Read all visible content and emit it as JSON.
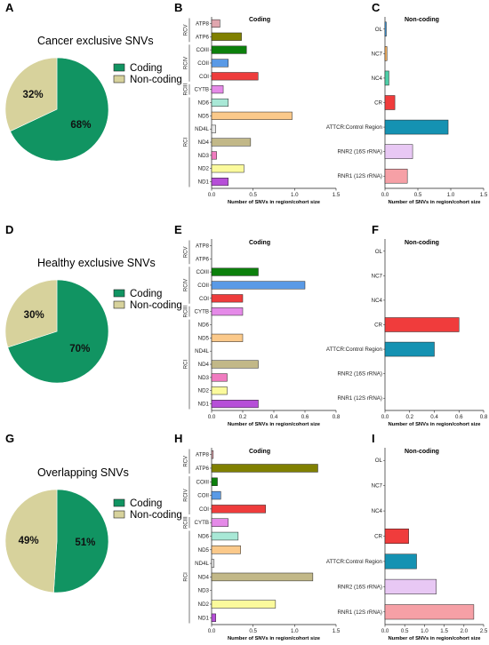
{
  "colors": {
    "coding_slice": "#119462",
    "noncoding_slice": "#d7d29c",
    "bar_stroke": "#222222",
    "category_colors": {
      "ATP8": "#e0a6ae",
      "ATP6": "#808000",
      "COIII": "#0c800c",
      "COII": "#5a9ae6",
      "COI": "#ee3c3c",
      "CYTB": "#e58ae8",
      "ND6": "#a8e8d6",
      "ND5": "#fbc98a",
      "ND4L": "#e8e8e8",
      "ND4": "#c2b888",
      "ND3": "#f07cc0",
      "ND2": "#fbfa9c",
      "ND1": "#b64fd8",
      "OL": "#3ea0e8",
      "NC7": "#f4b060",
      "NC4": "#4ecfa8",
      "CR": "#f03c3c",
      "ATTCR:Control Region": "#1592b2",
      "RNR2 (16S rRNA)": "#e8c8f4",
      "RNR1 (12S rRNA)": "#f6a0a6"
    }
  },
  "legend": {
    "coding": "Coding",
    "noncoding": "Non-coding"
  },
  "panels": {
    "A": {
      "letter": "A",
      "title": "Cancer exclusive SNVs"
    },
    "B": {
      "letter": "B"
    },
    "C": {
      "letter": "C"
    },
    "D": {
      "letter": "D",
      "title": "Healthy exclusive SNVs"
    },
    "E": {
      "letter": "E"
    },
    "F": {
      "letter": "F"
    },
    "G": {
      "letter": "G",
      "title": "Overlapping SNVs"
    },
    "H": {
      "letter": "H"
    },
    "I": {
      "letter": "I"
    }
  },
  "chart_data": [
    {
      "id": "A",
      "type": "pie",
      "title": "Cancer exclusive SNVs",
      "slices": [
        {
          "label": "Coding",
          "value": 68,
          "text": "68%"
        },
        {
          "label": "Non-coding",
          "value": 32,
          "text": "32%"
        }
      ],
      "legend": [
        "Coding",
        "Non-coding"
      ],
      "legend_position": "right"
    },
    {
      "id": "B",
      "type": "bar",
      "orientation": "horizontal",
      "title": "Coding",
      "xlabel": "Number of SNVs in region/cohort size",
      "xlim": [
        0,
        1.5
      ],
      "xticks": [
        "0.0",
        "0.5",
        "1.0",
        "1.5"
      ],
      "groups": [
        {
          "label": "RCV",
          "categories": [
            "ATP8",
            "ATP6"
          ]
        },
        {
          "label": "RCIV",
          "categories": [
            "COIII",
            "COII",
            "COI"
          ]
        },
        {
          "label": "RCIII",
          "categories": [
            "CYTB"
          ]
        },
        {
          "label": "RCI",
          "categories": [
            "ND6",
            "ND5",
            "ND4L",
            "ND4",
            "ND3",
            "ND2",
            "ND1"
          ]
        }
      ],
      "categories": [
        "ATP8",
        "ATP6",
        "COIII",
        "COII",
        "COI",
        "CYTB",
        "ND6",
        "ND5",
        "ND4L",
        "ND4",
        "ND3",
        "ND2",
        "ND1"
      ],
      "values": [
        0.1,
        0.36,
        0.42,
        0.2,
        0.56,
        0.14,
        0.2,
        0.97,
        0.05,
        0.47,
        0.06,
        0.39,
        0.2
      ]
    },
    {
      "id": "C",
      "type": "bar",
      "orientation": "horizontal",
      "title": "Non-coding",
      "xlabel": "Number of SNVs in region/cohort size",
      "xlim": [
        0,
        1.5
      ],
      "xticks": [
        "0.0",
        "0.5",
        "1.0",
        "1.5"
      ],
      "categories": [
        "OL",
        "NC7",
        "NC4",
        "CR",
        "ATTCR:Control Region",
        "RNR2 (16S rRNA)",
        "RNR1 (12S rRNA)"
      ],
      "values": [
        0.02,
        0.03,
        0.06,
        0.15,
        0.96,
        0.42,
        0.34
      ]
    },
    {
      "id": "D",
      "type": "pie",
      "title": "Healthy exclusive SNVs",
      "slices": [
        {
          "label": "Coding",
          "value": 70,
          "text": "70%"
        },
        {
          "label": "Non-coding",
          "value": 30,
          "text": "30%"
        }
      ],
      "legend": [
        "Coding",
        "Non-coding"
      ],
      "legend_position": "right"
    },
    {
      "id": "E",
      "type": "bar",
      "orientation": "horizontal",
      "title": "Coding",
      "xlabel": "Number of SNVs in region/cohort size",
      "xlim": [
        0,
        0.8
      ],
      "xticks": [
        "0.0",
        "0.2",
        "0.4",
        "0.6",
        "0.8"
      ],
      "groups": [
        {
          "label": "RCV",
          "categories": [
            "ATP8",
            "ATP6"
          ]
        },
        {
          "label": "RCIV",
          "categories": [
            "COIII",
            "COII",
            "COI"
          ]
        },
        {
          "label": "RCIII",
          "categories": [
            "CYTB"
          ]
        },
        {
          "label": "RCI",
          "categories": [
            "ND6",
            "ND5",
            "ND4L",
            "ND4",
            "ND3",
            "ND2",
            "ND1"
          ]
        }
      ],
      "categories": [
        "ATP8",
        "ATP6",
        "COIII",
        "COII",
        "COI",
        "CYTB",
        "ND6",
        "ND5",
        "ND4L",
        "ND4",
        "ND3",
        "ND2",
        "ND1"
      ],
      "values": [
        0,
        0,
        0.3,
        0.6,
        0.2,
        0.2,
        0,
        0.2,
        0,
        0.3,
        0.1,
        0.1,
        0.3
      ]
    },
    {
      "id": "F",
      "type": "bar",
      "orientation": "horizontal",
      "title": "Non-coding",
      "xlabel": "Number of SNVs in region/cohort size",
      "xlim": [
        0,
        0.8
      ],
      "xticks": [
        "0.0",
        "0.2",
        "0.4",
        "0.6",
        "0.8"
      ],
      "categories": [
        "OL",
        "NC7",
        "NC4",
        "CR",
        "ATTCR:Control Region",
        "RNR2 (16S rRNA)",
        "RNR1 (12S rRNA)"
      ],
      "values": [
        0,
        0,
        0,
        0.6,
        0.4,
        0,
        0
      ]
    },
    {
      "id": "G",
      "type": "pie",
      "title": "Overlapping SNVs",
      "slices": [
        {
          "label": "Coding",
          "value": 51,
          "text": "51%"
        },
        {
          "label": "Non-coding",
          "value": 49,
          "text": "49%"
        }
      ],
      "legend": [
        "Coding",
        "Non-coding"
      ],
      "legend_position": "right"
    },
    {
      "id": "H",
      "type": "bar",
      "orientation": "horizontal",
      "title": "Coding",
      "xlabel": "Number of SNVs in region/cohort size",
      "xlim": [
        0,
        1.5
      ],
      "xticks": [
        "0.0",
        "0.5",
        "1.0",
        "1.5"
      ],
      "groups": [
        {
          "label": "RCV",
          "categories": [
            "ATP8",
            "ATP6"
          ]
        },
        {
          "label": "RCIV",
          "categories": [
            "COIII",
            "COII",
            "COI"
          ]
        },
        {
          "label": "RCIII",
          "categories": [
            "CYTB"
          ]
        },
        {
          "label": "RCI",
          "categories": [
            "ND6",
            "ND5",
            "ND4L",
            "ND4",
            "ND3",
            "ND2",
            "ND1"
          ]
        }
      ],
      "categories": [
        "ATP8",
        "ATP6",
        "COIII",
        "COII",
        "COI",
        "CYTB",
        "ND6",
        "ND5",
        "ND4L",
        "ND4",
        "ND3",
        "ND2",
        "ND1"
      ],
      "values": [
        0.02,
        1.28,
        0.07,
        0.11,
        0.65,
        0.2,
        0.32,
        0.35,
        0.03,
        1.22,
        0,
        0.77,
        0.05
      ]
    },
    {
      "id": "I",
      "type": "bar",
      "orientation": "horizontal",
      "title": "Non-coding",
      "xlabel": "Number of SNVs in region/cohort size",
      "xlim": [
        0,
        2.5
      ],
      "xticks": [
        "0.0",
        "0.5",
        "1.0",
        "1.5",
        "2.0",
        "2.5"
      ],
      "categories": [
        "OL",
        "NC7",
        "NC4",
        "CR",
        "ATTCR:Control Region",
        "RNR2 (16S rRNA)",
        "RNR1 (12S rRNA)"
      ],
      "values": [
        0,
        0,
        0,
        0.6,
        0.8,
        1.3,
        2.25
      ]
    }
  ]
}
